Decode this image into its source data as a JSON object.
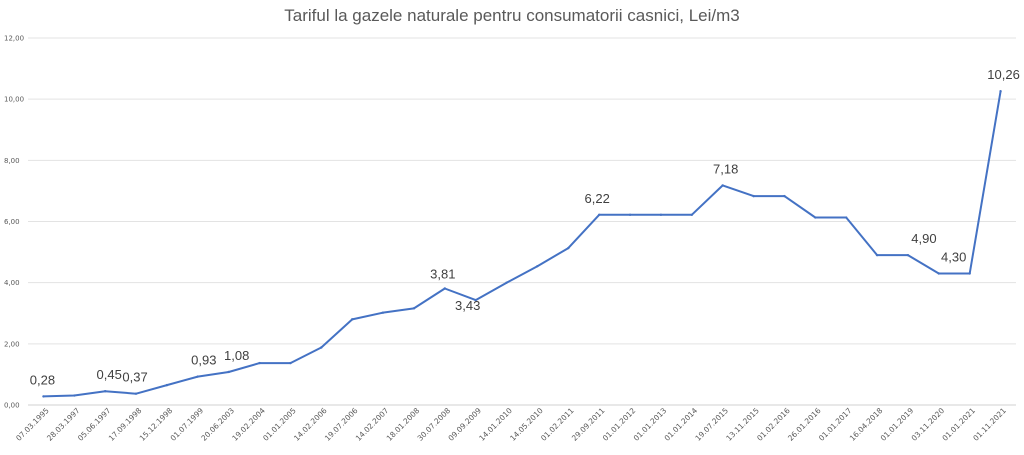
{
  "chart_data": {
    "type": "line",
    "title": "Tariful la gazele naturale pentru consumatorii casnici, Lei/m3",
    "xlabel": "",
    "ylabel": "",
    "ylim": [
      0,
      12
    ],
    "yticks": [
      "0,00",
      "2,00",
      "4,00",
      "6,00",
      "8,00",
      "10,00",
      "12,00"
    ],
    "grid": true,
    "legend": "none",
    "line_color": "#4472C4",
    "categories": [
      "07.03.1995",
      "28.03.1997",
      "05.06.1997",
      "17.09.1998",
      "15.12.1998",
      "01.07.1999",
      "20.06.2003",
      "19.02.2004",
      "01.01.2005",
      "14.02.2006",
      "19.07.2006",
      "14.02.2007",
      "18.01.2008",
      "30.07.2008",
      "09.09.2009",
      "14.01.2010",
      "14.05.2010",
      "01.02.2011",
      "29.09.2011",
      "01.01.2012",
      "01.01.2013",
      "01.01.2014",
      "19.07.2015",
      "13.11.2015",
      "01.02.2016",
      "26.01.2016",
      "01.01.2017",
      "16.04.2018",
      "01.01.2019",
      "03.11.2020",
      "01.01.2021",
      "01.11.2021"
    ],
    "series": [
      {
        "values": [
          0.28,
          0.31,
          0.45,
          0.37,
          0.65,
          0.93,
          1.08,
          1.37,
          1.37,
          1.88,
          2.8,
          3.02,
          3.16,
          3.81,
          3.43,
          4.0,
          4.54,
          5.13,
          6.22,
          6.22,
          6.22,
          6.22,
          7.18,
          6.83,
          6.83,
          6.13,
          6.13,
          4.9,
          4.9,
          4.3,
          4.3,
          10.26
        ]
      }
    ],
    "data_labels": [
      {
        "index": 0,
        "text": "0,28"
      },
      {
        "index": 2,
        "text": "0,45"
      },
      {
        "index": 3,
        "text": "0,37"
      },
      {
        "index": 5,
        "text": "0,93"
      },
      {
        "index": 6,
        "text": "1,08"
      },
      {
        "index": 13,
        "text": "3,81"
      },
      {
        "index": 14,
        "text": "3,43"
      },
      {
        "index": 18,
        "text": "6,22"
      },
      {
        "index": 22,
        "text": "7,18"
      },
      {
        "index": 28,
        "text": "4,90"
      },
      {
        "index": 30,
        "text": "4,30"
      },
      {
        "index": 31,
        "text": "10,26"
      }
    ]
  }
}
